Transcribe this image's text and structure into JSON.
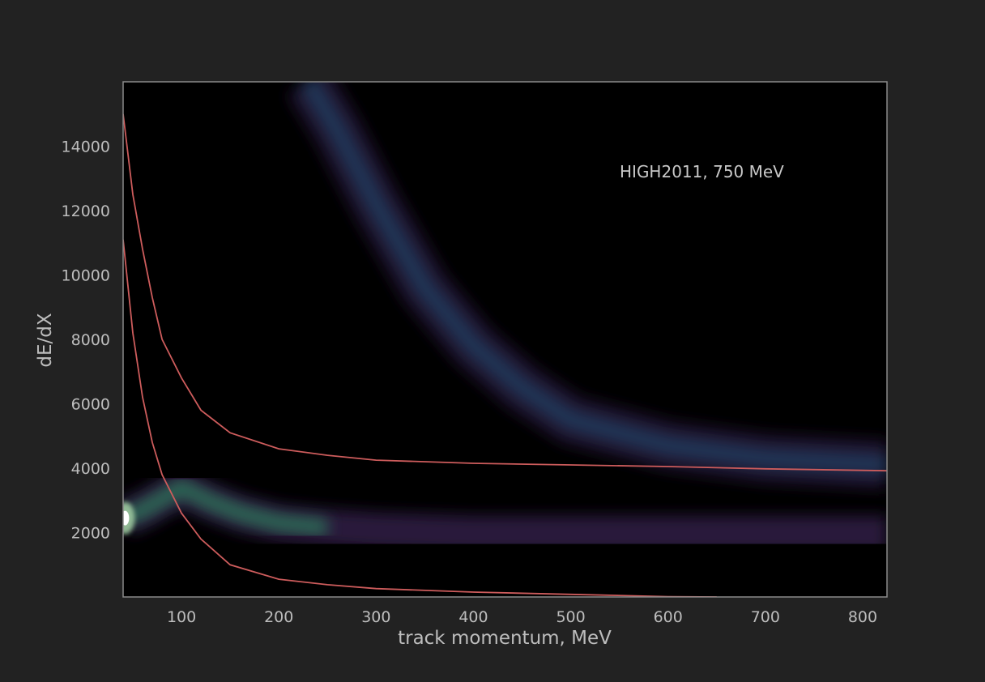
{
  "chart_data": {
    "type": "heatmap",
    "title": "",
    "xlabel": "track momentum, MeV",
    "ylabel": "dE/dX",
    "xlim": [
      40,
      825
    ],
    "ylim": [
      0,
      16000
    ],
    "xticks": [
      100,
      200,
      300,
      400,
      500,
      600,
      700,
      800
    ],
    "yticks": [
      2000,
      4000,
      6000,
      8000,
      10000,
      12000,
      14000
    ],
    "xtick_labels": [
      "100",
      "200",
      "300",
      "400",
      "500",
      "600",
      "700",
      "800"
    ],
    "ytick_labels": [
      "2000",
      "4000",
      "6000",
      "8000",
      "10000",
      "12000",
      "14000"
    ],
    "annotation": "HIGH2011, 750 MeV",
    "grid": false,
    "colormap": "cubehelix-like dark (black → purple → blue → green → white)",
    "colors": {
      "background": "#222222",
      "plot_area": "#000000",
      "frame": "#8a8a8a",
      "curve": "#cd5c5c",
      "text": "#bdbdbd"
    },
    "density_bands": [
      {
        "particle_band": "lower (pions/muons)",
        "points": [
          [
            40,
            2450
          ],
          [
            60,
            2700
          ],
          [
            100,
            3400
          ],
          [
            130,
            2950
          ],
          [
            160,
            2600
          ],
          [
            200,
            2300
          ],
          [
            250,
            2150
          ],
          [
            300,
            2050
          ],
          [
            400,
            1950
          ],
          [
            500,
            1950
          ],
          [
            600,
            1950
          ],
          [
            700,
            1950
          ],
          [
            825,
            1950
          ]
        ],
        "peak_intensity_at": [
          42,
          2450
        ]
      },
      {
        "particle_band": "upper (protons)",
        "points": [
          [
            230,
            16000
          ],
          [
            260,
            14500
          ],
          [
            300,
            12200
          ],
          [
            350,
            9600
          ],
          [
            400,
            7800
          ],
          [
            450,
            6500
          ],
          [
            500,
            5500
          ],
          [
            600,
            4700
          ],
          [
            700,
            4300
          ],
          [
            825,
            4100
          ]
        ]
      }
    ],
    "series": [
      {
        "points": [
          [
            40,
            15000
          ],
          [
            50,
            12500
          ],
          [
            60,
            10800
          ],
          [
            70,
            9300
          ],
          [
            80,
            8000
          ],
          [
            100,
            6800
          ],
          [
            120,
            5800
          ],
          [
            150,
            5100
          ],
          [
            200,
            4600
          ],
          [
            250,
            4400
          ],
          [
            300,
            4250
          ],
          [
            400,
            4150
          ],
          [
            500,
            4100
          ],
          [
            600,
            4050
          ],
          [
            700,
            3980
          ],
          [
            825,
            3920
          ]
        ]
      },
      {
        "points": [
          [
            40,
            11100
          ],
          [
            50,
            8200
          ],
          [
            60,
            6200
          ],
          [
            70,
            4800
          ],
          [
            80,
            3800
          ],
          [
            100,
            2600
          ],
          [
            120,
            1800
          ],
          [
            150,
            1000
          ],
          [
            200,
            550
          ],
          [
            250,
            380
          ],
          [
            300,
            260
          ],
          [
            400,
            150
          ],
          [
            500,
            80
          ],
          [
            600,
            10
          ],
          [
            650,
            0
          ]
        ]
      }
    ]
  }
}
